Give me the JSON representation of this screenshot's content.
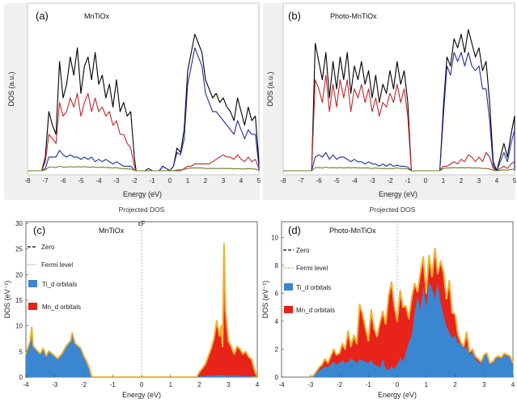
{
  "chart_data": [
    {
      "type": "line",
      "panel_label": "(a)",
      "title": "MnTiOx",
      "xlabel": "Energy (eV)",
      "ylabel": "DOS (a.u.)",
      "xlim": [
        -8,
        5
      ],
      "xticks": [
        -8,
        -7,
        -6,
        -5,
        -4,
        -3,
        -2,
        -1,
        0,
        1,
        2,
        3,
        4,
        5
      ],
      "grid": false,
      "x": [
        -7.2,
        -7.0,
        -6.8,
        -6.6,
        -6.4,
        -6.2,
        -6.0,
        -5.8,
        -5.6,
        -5.4,
        -5.2,
        -5.0,
        -4.8,
        -4.6,
        -4.4,
        -4.2,
        -4.0,
        -3.8,
        -3.6,
        -3.4,
        -3.2,
        -3.0,
        -2.8,
        -2.6,
        -2.4,
        -2.2,
        -2.0,
        -1.9,
        -1.6,
        -1.4,
        -1.2,
        -1.0,
        -0.8,
        -0.6,
        -0.4,
        -0.2,
        0.0,
        0.2,
        0.4,
        0.6,
        0.8,
        1.0,
        1.2,
        1.4,
        1.6,
        1.8,
        2.0,
        2.2,
        2.4,
        2.6,
        2.8,
        3.0,
        3.2,
        3.4,
        3.6,
        3.8,
        4.0,
        4.2,
        4.4,
        4.6,
        4.8,
        5.0
      ],
      "series": [
        {
          "color": "#000000",
          "values": [
            0,
            0.3,
            1.3,
            1.0,
            0.8,
            2.4,
            1.6,
            1.9,
            2.5,
            2.1,
            2.7,
            1.7,
            2.3,
            2.5,
            2.0,
            2.6,
            1.9,
            2.1,
            1.6,
            1.9,
            1.4,
            2.0,
            1.3,
            1.5,
            1.2,
            1.3,
            0.3,
            0,
            0,
            0,
            0.05,
            0,
            0,
            0,
            0.1,
            0.05,
            0,
            0.1,
            0.5,
            0.4,
            0.9,
            2.2,
            2.6,
            3.0,
            2.8,
            2.6,
            2.0,
            1.8,
            1.6,
            1.7,
            1.5,
            1.6,
            1.4,
            1.3,
            1.1,
            1.6,
            1.3,
            1.0,
            1.4,
            1.1,
            1.2,
            0.2
          ]
        },
        {
          "color": "#c0282a",
          "values": [
            0,
            0.2,
            0.8,
            0.7,
            0.6,
            1.5,
            1.2,
            1.3,
            1.6,
            1.4,
            1.7,
            1.2,
            1.5,
            1.7,
            1.3,
            1.6,
            1.3,
            1.4,
            1.2,
            1.3,
            1.0,
            1.1,
            0.8,
            0.8,
            0.6,
            0.5,
            0.1,
            0,
            0,
            0,
            0,
            0,
            0,
            0,
            0,
            0,
            0,
            0,
            0,
            0,
            0.05,
            0.1,
            0.1,
            0.15,
            0.15,
            0.15,
            0.15,
            0.15,
            0.2,
            0.25,
            0.3,
            0.35,
            0.3,
            0.3,
            0.25,
            0.35,
            0.25,
            0.2,
            0.3,
            0.2,
            0.25,
            0.05
          ]
        },
        {
          "color": "#1f2da0",
          "values": [
            0,
            0.05,
            0.3,
            0.3,
            0.3,
            0.45,
            0.35,
            0.3,
            0.35,
            0.3,
            0.3,
            0.25,
            0.3,
            0.25,
            0.3,
            0.2,
            0.25,
            0.2,
            0.25,
            0.2,
            0.15,
            0.2,
            0.15,
            0.1,
            0.1,
            0.1,
            0.02,
            0,
            0,
            0,
            0.05,
            0,
            0,
            0,
            0.1,
            0.05,
            0,
            0.1,
            0.4,
            0.35,
            0.7,
            1.9,
            2.3,
            2.7,
            2.5,
            2.3,
            1.7,
            1.5,
            1.3,
            1.3,
            1.2,
            1.1,
            1.0,
            0.9,
            0.8,
            1.1,
            0.9,
            0.7,
            0.9,
            0.8,
            0.8,
            0.1
          ]
        },
        {
          "color": "#6b7d22",
          "values": [
            0,
            0.02,
            0.08,
            0.08,
            0.07,
            0.1,
            0.08,
            0.08,
            0.09,
            0.08,
            0.09,
            0.08,
            0.09,
            0.08,
            0.08,
            0.08,
            0.07,
            0.08,
            0.07,
            0.07,
            0.06,
            0.07,
            0.05,
            0.05,
            0.04,
            0.04,
            0.01,
            0,
            0,
            0,
            0,
            0,
            0,
            0,
            0,
            0,
            0,
            0,
            0.02,
            0.02,
            0.03,
            0.05,
            0.06,
            0.06,
            0.06,
            0.06,
            0.05,
            0.05,
            0.05,
            0.05,
            0.05,
            0.05,
            0.05,
            0.05,
            0.04,
            0.05,
            0.04,
            0.04,
            0.05,
            0.04,
            0.04,
            0.01
          ]
        }
      ]
    },
    {
      "type": "line",
      "panel_label": "(b)",
      "title": "Photo-MnTiOx",
      "xlabel": "Energy (eV)",
      "ylabel": "DOS (a.u.)",
      "xlim": [
        -8,
        5
      ],
      "xticks": [
        -8,
        -7,
        -6,
        -5,
        -4,
        -3,
        -2,
        -1,
        0,
        1,
        2,
        3,
        4,
        5
      ],
      "grid": false,
      "x": [
        -6.4,
        -6.2,
        -6.0,
        -5.8,
        -5.6,
        -5.4,
        -5.2,
        -5.0,
        -4.8,
        -4.6,
        -4.4,
        -4.2,
        -4.0,
        -3.8,
        -3.6,
        -3.4,
        -3.2,
        -3.0,
        -2.8,
        -2.6,
        -2.4,
        -2.2,
        -2.0,
        -1.8,
        -1.6,
        -1.4,
        -1.2,
        -1.0,
        -0.8,
        0.0,
        0.8,
        1.0,
        1.2,
        1.4,
        1.6,
        1.8,
        2.0,
        2.2,
        2.4,
        2.6,
        2.8,
        3.0,
        3.2,
        3.4,
        3.6,
        3.8,
        4.0,
        4.2,
        4.4,
        4.6,
        4.8,
        5.0
      ],
      "series": [
        {
          "color": "#000000",
          "values": [
            0,
            2.8,
            2.4,
            2.0,
            2.6,
            1.6,
            2.4,
            1.8,
            2.5,
            2.0,
            2.6,
            1.7,
            2.3,
            2.0,
            2.4,
            1.9,
            2.2,
            1.6,
            2.1,
            1.5,
            1.9,
            1.7,
            2.2,
            1.8,
            2.4,
            1.9,
            2.2,
            1.5,
            0,
            0,
            0,
            1.4,
            2.5,
            2.3,
            2.9,
            2.7,
            3.0,
            2.6,
            3.1,
            2.8,
            2.5,
            2.7,
            2.2,
            2.4,
            1.5,
            0.2,
            0,
            0.3,
            0.6,
            0.3,
            0.8,
            1.2
          ]
        },
        {
          "color": "#c0282a",
          "values": [
            0,
            2.0,
            1.8,
            1.5,
            2.1,
            1.3,
            1.9,
            1.4,
            2.0,
            1.6,
            2.0,
            1.3,
            1.8,
            1.6,
            1.9,
            1.5,
            1.8,
            1.3,
            1.6,
            1.2,
            1.5,
            1.4,
            1.7,
            1.5,
            1.9,
            1.5,
            1.8,
            1.2,
            0,
            0,
            0,
            0.1,
            0.1,
            0.15,
            0.2,
            0.15,
            0.25,
            0.2,
            0.35,
            0.3,
            0.2,
            0.3,
            0.2,
            0.4,
            0.3,
            0.05,
            0,
            0.05,
            0.1,
            0.05,
            0.15,
            0.2
          ]
        },
        {
          "color": "#1f2da0",
          "values": [
            0,
            0.3,
            0.35,
            0.3,
            0.4,
            0.25,
            0.35,
            0.25,
            0.3,
            0.3,
            0.25,
            0.2,
            0.25,
            0.2,
            0.2,
            0.15,
            0.2,
            0.15,
            0.15,
            0.1,
            0.15,
            0.1,
            0.15,
            0.1,
            0.12,
            0.1,
            0.1,
            0.08,
            0,
            0,
            0,
            1.2,
            2.3,
            2.1,
            2.6,
            2.4,
            2.6,
            2.3,
            2.6,
            2.3,
            2.2,
            2.3,
            1.8,
            1.8,
            1.1,
            0.1,
            0,
            0.2,
            0.4,
            0.2,
            0.6,
            0.9
          ]
        },
        {
          "color": "#6b7d22",
          "values": [
            0,
            0.07,
            0.07,
            0.06,
            0.08,
            0.06,
            0.07,
            0.06,
            0.07,
            0.06,
            0.07,
            0.06,
            0.07,
            0.06,
            0.06,
            0.06,
            0.06,
            0.05,
            0.06,
            0.05,
            0.05,
            0.05,
            0.05,
            0.05,
            0.06,
            0.05,
            0.05,
            0.04,
            0,
            0,
            0,
            0.05,
            0.06,
            0.06,
            0.07,
            0.06,
            0.07,
            0.06,
            0.07,
            0.06,
            0.06,
            0.06,
            0.05,
            0.05,
            0.04,
            0.01,
            0,
            0.01,
            0.02,
            0.01,
            0.03,
            0.04
          ]
        }
      ]
    },
    {
      "type": "area",
      "panel_label": "(c)",
      "top_title": "Projected DOS",
      "title": "MnTiOx",
      "fermi_marker": "εF",
      "xlabel": "Energy (eV)",
      "ylabel": "DOS (eV⁻¹)",
      "xlim": [
        -4,
        4
      ],
      "ylim": [
        0,
        30
      ],
      "xticks": [
        -4,
        -3,
        -2,
        -1,
        0,
        1,
        2,
        3,
        4
      ],
      "yticks": [
        0,
        5,
        10,
        15,
        20,
        25,
        30
      ],
      "legend": [
        "Zero",
        "Fermi level",
        "Ti_d orbitals",
        "Mn_d orbitals"
      ],
      "legend_position": "top-left",
      "x": [
        -4.0,
        -3.85,
        -3.8,
        -3.75,
        -3.6,
        -3.5,
        -3.4,
        -3.3,
        -3.2,
        -3.1,
        -2.9,
        -2.75,
        -2.6,
        -2.45,
        -2.4,
        -2.35,
        -2.3,
        -2.2,
        -2.1,
        -2.0,
        -1.9,
        -1.8,
        -1.75,
        -1.7,
        1.9,
        2.0,
        2.2,
        2.4,
        2.5,
        2.6,
        2.7,
        2.75,
        2.8,
        2.85,
        2.9,
        3.0,
        3.1,
        3.2,
        3.3,
        3.4,
        3.5,
        3.6,
        3.7,
        3.8,
        3.9,
        4.0
      ],
      "series": [
        {
          "name": "Ti_d orbitals",
          "color": "#3b86d0",
          "values": [
            4.5,
            7,
            9.5,
            6,
            5,
            4.5,
            5.5,
            4,
            5,
            4.5,
            3.5,
            4.5,
            6,
            7,
            8.5,
            7.5,
            6.5,
            6,
            5.5,
            4,
            3,
            1.5,
            0.5,
            0,
            0,
            0.2,
            0.2,
            0.3,
            0.3,
            0.4,
            0.4,
            0.4,
            0.4,
            0.4,
            0.3,
            0.3,
            0.3,
            0.2,
            0.3,
            0.3,
            0.2,
            0.2,
            0.2,
            0.1,
            0.1,
            0
          ]
        },
        {
          "name": "Mn_d orbitals",
          "color": "#e8231a",
          "values": [
            4.5,
            7.1,
            9.7,
            6.1,
            5.1,
            4.6,
            5.6,
            4.1,
            5.1,
            4.6,
            3.6,
            4.6,
            6.1,
            7.1,
            8.6,
            7.6,
            6.6,
            6.1,
            5.6,
            4.1,
            3.1,
            1.6,
            0.5,
            0,
            0,
            1.0,
            2.5,
            5.5,
            7.5,
            11,
            8,
            10,
            6,
            26,
            13,
            7,
            6,
            4.5,
            6,
            5.5,
            4.5,
            5,
            4,
            3.5,
            1.5,
            0
          ]
        }
      ]
    },
    {
      "type": "area",
      "panel_label": "(d)",
      "top_title": "Projected DOS",
      "title": "Photo-MnTiOx",
      "xlabel": "Energy (eV)",
      "ylabel": "DOS (eV⁻¹)",
      "xlim": [
        -4,
        4
      ],
      "ylim": [
        0,
        11
      ],
      "xticks": [
        -4,
        -3,
        -2,
        -1,
        0,
        1,
        2,
        3,
        4
      ],
      "yticks": [
        0,
        2,
        4,
        6,
        8,
        10
      ],
      "legend": [
        "Zero",
        "Fermi level",
        "Ti_d orbitals",
        "Mn_d orbitals"
      ],
      "legend_position": "top-left",
      "x": [
        -3.0,
        -2.9,
        -2.8,
        -2.7,
        -2.6,
        -2.5,
        -2.4,
        -2.3,
        -2.2,
        -2.1,
        -2.0,
        -1.9,
        -1.8,
        -1.7,
        -1.6,
        -1.5,
        -1.4,
        -1.3,
        -1.2,
        -1.1,
        -1.0,
        -0.9,
        -0.8,
        -0.7,
        -0.6,
        -0.5,
        -0.4,
        -0.3,
        -0.2,
        -0.1,
        0.0,
        0.1,
        0.2,
        0.3,
        0.4,
        0.5,
        0.6,
        0.7,
        0.8,
        0.9,
        1.0,
        1.1,
        1.2,
        1.3,
        1.4,
        1.5,
        1.6,
        1.7,
        1.8,
        1.9,
        2.0,
        2.1,
        2.2,
        2.3,
        2.4,
        2.5,
        2.6,
        2.7,
        2.8,
        2.9,
        3.0,
        3.1,
        3.2,
        3.3,
        3.4,
        3.5,
        3.6,
        3.7,
        3.8,
        3.9,
        4.0
      ],
      "series": [
        {
          "name": "Ti_d orbitals",
          "color": "#3b86d0",
          "values": [
            0,
            0.1,
            0.3,
            0.5,
            0.6,
            0.8,
            0.7,
            0.9,
            1.1,
            0.9,
            1.0,
            1.2,
            1.0,
            1.1,
            1.3,
            1.2,
            1.0,
            1.3,
            1.2,
            1.1,
            1.0,
            1.2,
            0.9,
            0.8,
            0.7,
            1.3,
            0.6,
            0.5,
            0.8,
            0.6,
            0.9,
            1.4,
            1.1,
            1.8,
            2.5,
            3.0,
            4.6,
            5.8,
            4.8,
            6.5,
            5.0,
            6.8,
            6.4,
            5.6,
            6.7,
            5.3,
            4.4,
            3.6,
            3.2,
            2.8,
            3.0,
            2.4,
            2.5,
            2.0,
            2.2,
            1.6,
            1.8,
            1.3,
            1.1,
            1.0,
            1.5,
            1.6,
            0.9,
            1.0,
            1.3,
            1.4,
            1.3,
            1.6,
            1.5,
            1.4,
            1.0
          ]
        },
        {
          "name": "Mn_d orbitals",
          "color": "#e8231a",
          "values": [
            0,
            0.1,
            0.4,
            0.7,
            0.9,
            1.3,
            1.0,
            1.5,
            2.0,
            1.6,
            1.7,
            2.4,
            2.0,
            3.3,
            2.2,
            3.0,
            2.4,
            5.2,
            4.5,
            3.5,
            2.6,
            4.8,
            3.5,
            2.9,
            3.9,
            4.7,
            3.8,
            5.8,
            6.8,
            5.1,
            4.0,
            6.2,
            5.0,
            5.1,
            4.2,
            5.7,
            6.7,
            6.1,
            7.5,
            8.6,
            6.0,
            8.7,
            7.2,
            9.2,
            7.4,
            8.3,
            7.5,
            5.6,
            6.9,
            4.6,
            4.5,
            3.0,
            2.5,
            2.2,
            3.2,
            1.8,
            2.0,
            1.5,
            1.3,
            1.1,
            1.6,
            1.7,
            1.0,
            1.1,
            1.4,
            1.5,
            1.4,
            1.7,
            1.6,
            1.5,
            1.0
          ]
        }
      ]
    }
  ]
}
